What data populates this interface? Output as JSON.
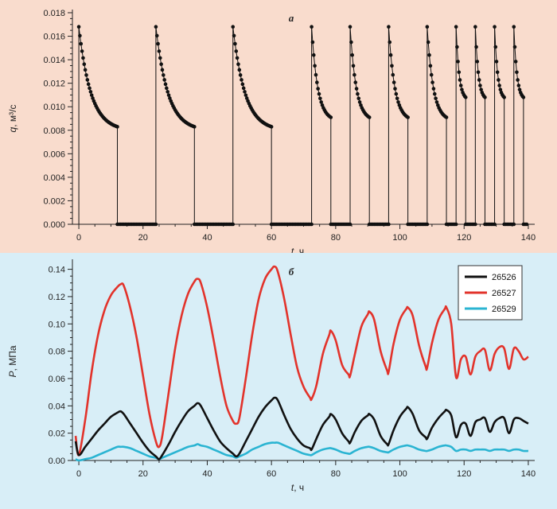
{
  "chart_data": [
    {
      "type": "scatter",
      "panel_label": "а",
      "xlabel": {
        "symbol": "t",
        "unit": ", ч"
      },
      "ylabel": {
        "symbol": "q",
        "unit": ", м³/с"
      },
      "xlim": [
        -2,
        142
      ],
      "ylim": [
        0,
        0.018
      ],
      "xticks": [
        0,
        20,
        40,
        60,
        80,
        100,
        120,
        140
      ],
      "yticks": [
        0.0,
        0.002,
        0.004,
        0.006,
        0.008,
        0.01,
        0.012,
        0.014,
        0.016,
        0.018
      ],
      "ytick_decimals": 3,
      "grid": false,
      "marker_color": "#111111",
      "series": [
        {
          "cycles": [
            {
              "on": [
                0.0,
                12.0
              ],
              "q_start": 0.0168,
              "q_end": 0.0083
            },
            {
              "on": [
                24.0,
                36.0
              ],
              "q_start": 0.0168,
              "q_end": 0.0083
            },
            {
              "on": [
                48.0,
                60.0
              ],
              "q_start": 0.0168,
              "q_end": 0.0083
            },
            {
              "on": [
                72.5,
                78.5
              ],
              "q_start": 0.0168,
              "q_end": 0.0091
            },
            {
              "on": [
                84.5,
                90.5
              ],
              "q_start": 0.0168,
              "q_end": 0.0091
            },
            {
              "on": [
                96.5,
                102.5
              ],
              "q_start": 0.0168,
              "q_end": 0.0091
            },
            {
              "on": [
                108.5,
                114.5
              ],
              "q_start": 0.0168,
              "q_end": 0.0091
            },
            {
              "on": [
                117.5,
                120.5
              ],
              "q_start": 0.0168,
              "q_end": 0.0108
            },
            {
              "on": [
                123.5,
                126.5
              ],
              "q_start": 0.0168,
              "q_end": 0.0108
            },
            {
              "on": [
                129.5,
                132.5
              ],
              "q_start": 0.0168,
              "q_end": 0.0108
            },
            {
              "on": [
                135.5,
                138.5
              ],
              "q_start": 0.0168,
              "q_end": 0.0108
            }
          ],
          "off_value": 0.0
        }
      ]
    },
    {
      "type": "line",
      "panel_label": "б",
      "xlabel": {
        "symbol": "t",
        "unit": ", ч"
      },
      "ylabel": {
        "symbol": "P",
        "unit": ", МПа"
      },
      "xlim": [
        -2,
        142
      ],
      "ylim": [
        0,
        0.145
      ],
      "xticks": [
        0,
        20,
        40,
        60,
        80,
        100,
        120,
        140
      ],
      "yticks": [
        0.0,
        0.02,
        0.04,
        0.06,
        0.08,
        0.1,
        0.12,
        0.14
      ],
      "ytick_decimals": 2,
      "grid": false,
      "legend_position": "top-right",
      "series": [
        {
          "name": "26526",
          "color": "#111111",
          "x": [
            -1,
            0,
            2,
            4,
            6,
            8,
            10,
            12,
            13,
            14,
            16,
            18,
            20,
            22,
            24,
            25,
            26,
            28,
            30,
            32,
            34,
            36,
            37,
            38,
            40,
            42,
            44,
            46,
            48,
            49,
            50,
            52,
            54,
            56,
            58,
            60,
            61,
            62,
            64,
            66,
            68,
            70,
            72,
            72.5,
            74,
            76,
            78,
            78.5,
            80,
            82,
            84,
            84.5,
            86,
            88,
            90,
            90.5,
            92,
            94,
            96,
            96.5,
            98,
            100,
            102,
            102.5,
            104,
            106,
            108,
            108.5,
            110,
            112,
            114,
            114.5,
            116,
            117.5,
            119,
            120.5,
            122,
            123.5,
            125,
            126.5,
            128,
            129.5,
            131,
            132.5,
            134,
            135.5,
            137,
            138.5,
            140
          ],
          "y": [
            0.014,
            0.004,
            0.01,
            0.016,
            0.022,
            0.027,
            0.032,
            0.035,
            0.036,
            0.034,
            0.027,
            0.02,
            0.013,
            0.007,
            0.003,
            0.001,
            0.004,
            0.012,
            0.021,
            0.029,
            0.036,
            0.04,
            0.042,
            0.04,
            0.031,
            0.022,
            0.014,
            0.009,
            0.005,
            0.003,
            0.005,
            0.014,
            0.023,
            0.032,
            0.039,
            0.044,
            0.046,
            0.044,
            0.033,
            0.023,
            0.016,
            0.011,
            0.009,
            0.008,
            0.016,
            0.026,
            0.032,
            0.034,
            0.03,
            0.02,
            0.014,
            0.013,
            0.021,
            0.029,
            0.033,
            0.034,
            0.03,
            0.018,
            0.012,
            0.012,
            0.022,
            0.032,
            0.038,
            0.039,
            0.034,
            0.022,
            0.017,
            0.016,
            0.024,
            0.031,
            0.036,
            0.037,
            0.033,
            0.017,
            0.026,
            0.027,
            0.018,
            0.028,
            0.03,
            0.031,
            0.021,
            0.028,
            0.031,
            0.031,
            0.02,
            0.03,
            0.031,
            0.029,
            0.027
          ]
        },
        {
          "name": "26527",
          "color": "#e2332b",
          "x": [
            -1,
            0,
            2,
            4,
            6,
            8,
            10,
            12,
            13,
            14,
            16,
            18,
            20,
            22,
            24,
            25,
            26,
            28,
            30,
            32,
            34,
            36,
            37,
            38,
            40,
            42,
            44,
            46,
            48,
            49,
            50,
            52,
            54,
            56,
            58,
            60,
            61,
            62,
            64,
            66,
            68,
            70,
            72,
            72.5,
            74,
            76,
            78,
            78.5,
            80,
            82,
            84,
            84.5,
            86,
            88,
            90,
            90.5,
            92,
            94,
            96,
            96.5,
            98,
            100,
            102,
            102.5,
            104,
            106,
            108,
            108.5,
            110,
            112,
            114,
            114.5,
            116,
            117.5,
            119,
            120.5,
            122,
            123.5,
            125,
            126.5,
            128,
            129.5,
            131,
            132.5,
            134,
            135.5,
            137,
            138.5,
            140
          ],
          "y": [
            0.018,
            0.004,
            0.03,
            0.065,
            0.092,
            0.11,
            0.121,
            0.127,
            0.129,
            0.128,
            0.112,
            0.09,
            0.062,
            0.034,
            0.014,
            0.01,
            0.018,
            0.05,
            0.082,
            0.106,
            0.122,
            0.131,
            0.133,
            0.13,
            0.112,
            0.088,
            0.062,
            0.04,
            0.029,
            0.027,
            0.031,
            0.06,
            0.092,
            0.118,
            0.133,
            0.14,
            0.142,
            0.138,
            0.118,
            0.092,
            0.068,
            0.054,
            0.046,
            0.045,
            0.055,
            0.078,
            0.092,
            0.095,
            0.088,
            0.07,
            0.063,
            0.062,
            0.078,
            0.098,
            0.107,
            0.109,
            0.103,
            0.08,
            0.066,
            0.065,
            0.085,
            0.103,
            0.111,
            0.112,
            0.106,
            0.084,
            0.069,
            0.068,
            0.086,
            0.103,
            0.111,
            0.112,
            0.1,
            0.061,
            0.074,
            0.076,
            0.063,
            0.076,
            0.08,
            0.081,
            0.066,
            0.078,
            0.083,
            0.082,
            0.067,
            0.082,
            0.08,
            0.074,
            0.076
          ]
        },
        {
          "name": "26529",
          "color": "#2ab4d2",
          "x": [
            -1,
            0,
            2,
            4,
            6,
            8,
            10,
            12,
            13,
            14,
            16,
            18,
            20,
            22,
            24,
            25,
            26,
            28,
            30,
            32,
            34,
            36,
            37,
            38,
            40,
            42,
            44,
            46,
            48,
            49,
            50,
            52,
            54,
            56,
            58,
            60,
            61,
            62,
            64,
            66,
            68,
            70,
            72,
            72.5,
            74,
            76,
            78,
            78.5,
            80,
            82,
            84,
            84.5,
            86,
            88,
            90,
            90.5,
            92,
            94,
            96,
            96.5,
            98,
            100,
            102,
            102.5,
            104,
            106,
            108,
            108.5,
            110,
            112,
            114,
            114.5,
            116,
            117.5,
            119,
            120.5,
            122,
            123.5,
            125,
            126.5,
            128,
            129.5,
            131,
            132.5,
            134,
            135.5,
            137,
            138.5,
            140
          ],
          "y": [
            0.001,
            0.0,
            0.001,
            0.002,
            0.004,
            0.006,
            0.008,
            0.01,
            0.01,
            0.01,
            0.009,
            0.007,
            0.005,
            0.003,
            0.002,
            0.001,
            0.002,
            0.004,
            0.006,
            0.008,
            0.01,
            0.011,
            0.012,
            0.011,
            0.01,
            0.008,
            0.006,
            0.004,
            0.003,
            0.002,
            0.003,
            0.005,
            0.008,
            0.01,
            0.012,
            0.013,
            0.013,
            0.013,
            0.011,
            0.009,
            0.007,
            0.005,
            0.004,
            0.004,
            0.006,
            0.008,
            0.009,
            0.009,
            0.008,
            0.006,
            0.005,
            0.005,
            0.007,
            0.009,
            0.01,
            0.01,
            0.009,
            0.007,
            0.006,
            0.006,
            0.008,
            0.01,
            0.011,
            0.011,
            0.01,
            0.008,
            0.007,
            0.007,
            0.008,
            0.01,
            0.011,
            0.011,
            0.01,
            0.007,
            0.008,
            0.008,
            0.007,
            0.008,
            0.008,
            0.008,
            0.007,
            0.008,
            0.008,
            0.008,
            0.007,
            0.008,
            0.008,
            0.007,
            0.007
          ]
        }
      ]
    }
  ]
}
